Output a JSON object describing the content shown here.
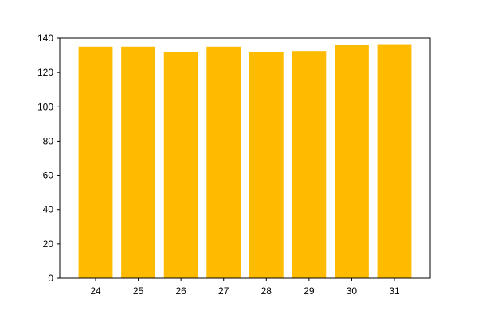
{
  "chart_data": {
    "type": "bar",
    "title": "",
    "xlabel": "",
    "ylabel": "",
    "categories": [
      "24",
      "25",
      "26",
      "27",
      "28",
      "29",
      "30",
      "31"
    ],
    "values": [
      135,
      135,
      132,
      135,
      132,
      132.5,
      136,
      136.5
    ],
    "ylim": [
      0,
      140
    ],
    "yticks": [
      0,
      20,
      40,
      60,
      80,
      100,
      120,
      140
    ],
    "grid": false,
    "legend": "none",
    "bar_color": "#ffbb00"
  }
}
